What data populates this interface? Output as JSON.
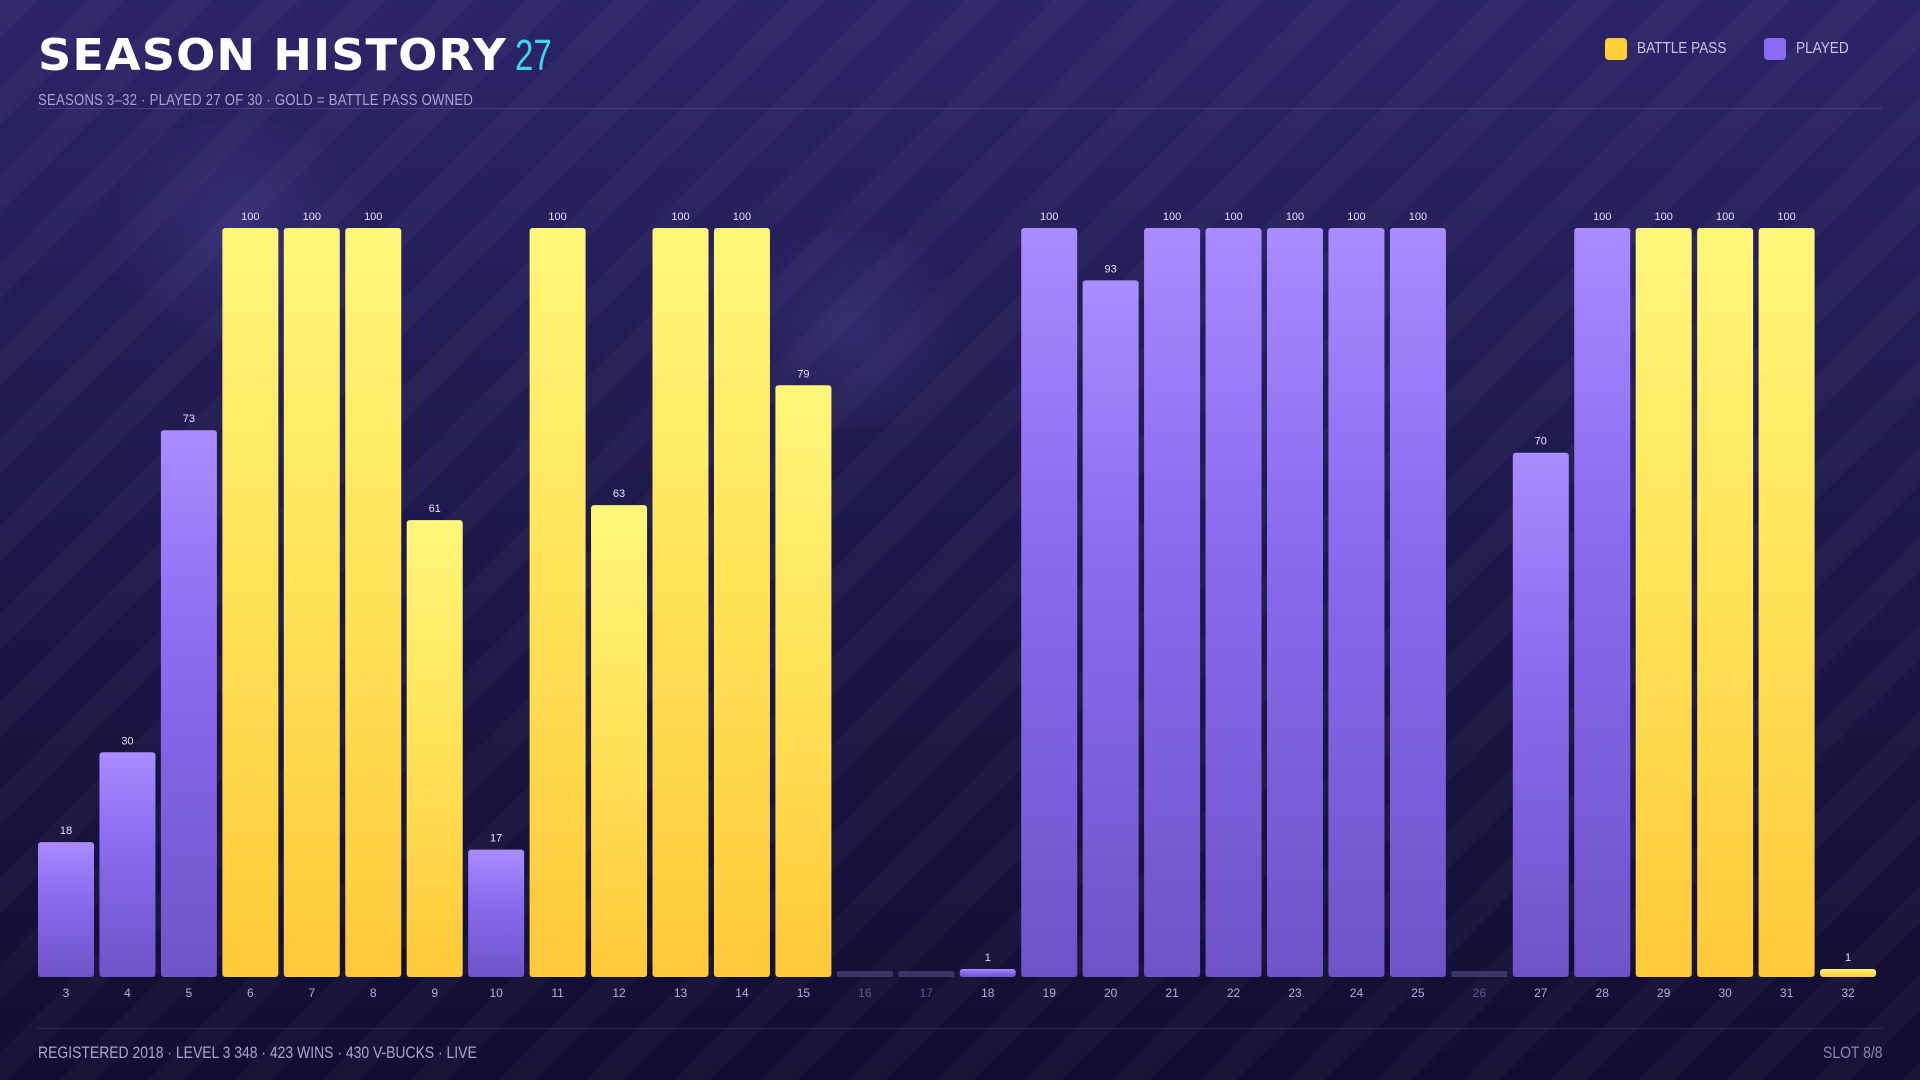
{
  "header": {
    "title": "SEASON HISTORY",
    "count": "27",
    "subtitle": "SEASONS 3–32 · PLAYED 27 OF 30 · GOLD = BATTLE PASS OWNED"
  },
  "legend": {
    "items": [
      {
        "label": "BATTLE PASS",
        "color": "#ffcf3a"
      },
      {
        "label": "PLAYED",
        "color": "#8a6cf0"
      }
    ]
  },
  "footer": {
    "summary": "REGISTERED 2018 · LEVEL 3 348 · 423 WINS · 430 V-BUCKS · LIVE",
    "slot": "SLOT 8/8"
  },
  "colors": {
    "battle_pass": "#ffcf3a",
    "played": "#8a6cf0",
    "not_played": "#3a3566",
    "accent": "#3fd4f0"
  },
  "chart_data": {
    "type": "bar",
    "categories": [
      "3",
      "4",
      "5",
      "6",
      "7",
      "8",
      "9",
      "10",
      "11",
      "12",
      "13",
      "14",
      "15",
      "16",
      "17",
      "18",
      "19",
      "20",
      "21",
      "22",
      "23",
      "24",
      "25",
      "26",
      "27",
      "28",
      "29",
      "30",
      "31",
      "32"
    ],
    "values": [
      18,
      30,
      73,
      100,
      100,
      100,
      61,
      17,
      100,
      63,
      100,
      100,
      79,
      0,
      0,
      1,
      100,
      93,
      100,
      100,
      100,
      100,
      100,
      0,
      70,
      100,
      100,
      100,
      100,
      1
    ],
    "data_labels": [
      "18",
      "30",
      "73",
      "100",
      "100",
      "100",
      "61",
      "17",
      "100",
      "63",
      "100",
      "100",
      "79",
      "",
      "",
      "1",
      "100",
      "93",
      "100",
      "100",
      "100",
      "100",
      "100",
      "",
      "70",
      "100",
      "100",
      "100",
      "100",
      "1"
    ],
    "battle_pass": [
      false,
      false,
      false,
      true,
      true,
      true,
      true,
      false,
      true,
      true,
      true,
      true,
      true,
      false,
      false,
      false,
      false,
      false,
      false,
      false,
      false,
      false,
      false,
      false,
      false,
      false,
      true,
      true,
      true,
      true
    ],
    "played": [
      true,
      true,
      true,
      true,
      true,
      true,
      true,
      true,
      true,
      true,
      true,
      true,
      true,
      false,
      false,
      true,
      true,
      true,
      true,
      true,
      true,
      true,
      true,
      false,
      true,
      true,
      true,
      true,
      true,
      true
    ],
    "ylim": [
      0,
      100
    ],
    "grid": false,
    "legend_position": "top-right"
  }
}
